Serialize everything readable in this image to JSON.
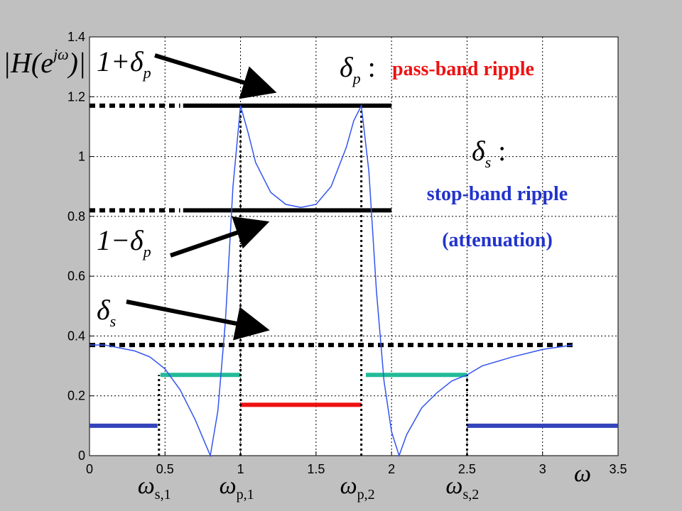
{
  "chart_data": {
    "type": "line",
    "xlim": [
      0,
      3.5
    ],
    "ylim": [
      0,
      1.4
    ],
    "xticks": [
      0,
      0.5,
      1,
      1.5,
      2,
      2.5,
      3,
      3.5
    ],
    "yticks": [
      0,
      0.2,
      0.4,
      0.6,
      0.8,
      1,
      1.2,
      1.4
    ],
    "grid": true,
    "x": [
      0,
      0.1,
      0.2,
      0.3,
      0.4,
      0.5,
      0.6,
      0.7,
      0.75,
      0.8,
      0.85,
      0.9,
      0.95,
      1.0,
      1.05,
      1.1,
      1.2,
      1.3,
      1.4,
      1.5,
      1.6,
      1.7,
      1.75,
      1.8,
      1.85,
      1.9,
      1.95,
      2.0,
      2.05,
      2.1,
      2.2,
      2.3,
      2.4,
      2.5,
      2.6,
      2.8,
      3.0,
      3.2
    ],
    "series": [
      {
        "color": "#3355ee",
        "values": [
          0.37,
          0.37,
          0.36,
          0.35,
          0.33,
          0.29,
          0.22,
          0.12,
          0.06,
          0,
          0.15,
          0.45,
          0.9,
          1.17,
          1.08,
          0.98,
          0.88,
          0.84,
          0.83,
          0.84,
          0.9,
          1.03,
          1.12,
          1.17,
          0.95,
          0.55,
          0.25,
          0.08,
          0,
          0.07,
          0.16,
          0.21,
          0.25,
          0.27,
          0.3,
          0.33,
          0.355,
          0.37
        ]
      }
    ],
    "segments": [
      {
        "x0": 0,
        "x1": 0.6,
        "y": 1.17,
        "color": "#000000",
        "dashed": true
      },
      {
        "x0": 0.62,
        "x1": 2.0,
        "y": 1.17,
        "color": "#000000",
        "dashed": false
      },
      {
        "x0": 0,
        "x1": 0.6,
        "y": 0.82,
        "color": "#000000",
        "dashed": true
      },
      {
        "x0": 0.62,
        "x1": 2.0,
        "y": 0.82,
        "color": "#000000",
        "dashed": false
      },
      {
        "x0": 0,
        "x1": 3.2,
        "y": 0.37,
        "color": "#000000",
        "dashed": true
      },
      {
        "x0": 0.47,
        "x1": 1.0,
        "y": 0.27,
        "color": "#22bb99",
        "dashed": false
      },
      {
        "x0": 1.83,
        "x1": 2.5,
        "y": 0.27,
        "color": "#22bb99",
        "dashed": false
      },
      {
        "x0": 1.0,
        "x1": 1.8,
        "y": 0.17,
        "color": "#ee1111",
        "dashed": false
      },
      {
        "x0": 0,
        "x1": 0.45,
        "y": 0.1,
        "color": "#3344bb",
        "dashed": false
      },
      {
        "x0": 2.5,
        "x1": 3.5,
        "y": 0.1,
        "color": "#3344bb",
        "dashed": false
      }
    ],
    "boundaries": [
      {
        "x": 0.46,
        "top": 0.27,
        "symbol": "ω",
        "sub": "s,1"
      },
      {
        "x": 1.0,
        "top": 1.17,
        "symbol": "ω",
        "sub": "p,1"
      },
      {
        "x": 1.8,
        "top": 1.17,
        "symbol": "ω",
        "sub": "p,2"
      },
      {
        "x": 2.5,
        "top": 0.27,
        "symbol": "ω",
        "sub": "s,2"
      }
    ],
    "xlabel": "ω",
    "ylabel": {
      "text": "|H(e",
      "sup": "jω",
      "end": ")|"
    },
    "annotations": [
      {
        "text": "1+δ",
        "sub": "p"
      },
      {
        "text": "δ",
        "sub": "p",
        "tail": " :"
      },
      {
        "text": "pass-band ripple"
      },
      {
        "text": "δ",
        "sub": "s",
        "tail": " :"
      },
      {
        "text": "stop-band ripple"
      },
      {
        "text": "(attenuation)"
      },
      {
        "text": "1−δ",
        "sub": "p"
      },
      {
        "text": "δ",
        "sub": "s"
      }
    ]
  }
}
